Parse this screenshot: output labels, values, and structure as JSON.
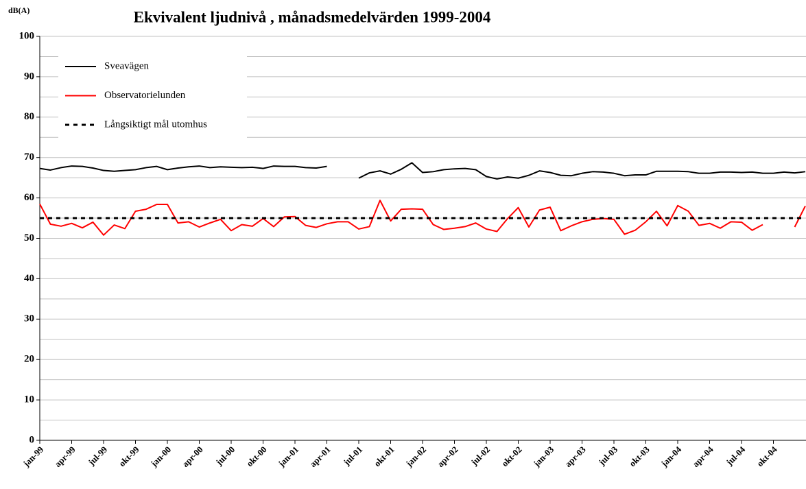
{
  "chart_data": {
    "type": "line",
    "title": "Ekvivalent ljudnivå , månadsmedelvärden 1999-2004",
    "y_label": "dB(A)",
    "categories": [
      "jan-99",
      null,
      null,
      "apr-99",
      null,
      null,
      "jul-99",
      null,
      null,
      "okt-99",
      null,
      null,
      "jan-00",
      null,
      null,
      "apr-00",
      null,
      null,
      "jul-00",
      null,
      null,
      "okt-00",
      null,
      null,
      "jan-01",
      null,
      null,
      "apr-01",
      null,
      null,
      "jul-01",
      null,
      null,
      "okt-01",
      null,
      null,
      "jan-02",
      null,
      null,
      "apr-02",
      null,
      null,
      "jul-02",
      null,
      null,
      "okt-02",
      null,
      null,
      "jan-03",
      null,
      null,
      "apr-03",
      null,
      null,
      "jul-03",
      null,
      null,
      "okt-03",
      null,
      null,
      "jan-04",
      null,
      null,
      "apr-04",
      null,
      null,
      "jul-04",
      null,
      null,
      "okt-04",
      null,
      null,
      null
    ],
    "series": [
      {
        "name": "Sveavägen",
        "color": "#000000",
        "dash": false,
        "values": [
          67.3,
          66.9,
          67.5,
          67.9,
          67.8,
          67.4,
          66.8,
          66.6,
          66.8,
          67.0,
          67.5,
          67.8,
          67.0,
          67.4,
          67.7,
          67.9,
          67.5,
          67.7,
          67.6,
          67.5,
          67.6,
          67.3,
          67.9,
          67.8,
          67.8,
          67.5,
          67.4,
          67.8,
          null,
          null,
          64.9,
          66.2,
          66.7,
          65.9,
          67.1,
          68.7,
          66.3,
          66.5,
          67.0,
          67.2,
          67.3,
          67.0,
          65.3,
          64.7,
          65.2,
          64.9,
          65.6,
          66.7,
          66.3,
          65.6,
          65.5,
          66.1,
          66.5,
          66.4,
          66.1,
          65.5,
          65.7,
          65.7,
          66.6,
          66.6,
          66.6,
          66.5,
          66.1,
          66.1,
          66.4,
          66.4,
          66.3,
          66.4,
          66.1,
          66.1,
          66.4,
          66.2,
          66.5
        ]
      },
      {
        "name": "Observatorielunden",
        "color": "#ff0000",
        "dash": false,
        "values": [
          58.5,
          53.5,
          53.0,
          53.7,
          52.6,
          54.0,
          50.8,
          53.3,
          52.4,
          56.7,
          57.2,
          58.4,
          58.4,
          53.8,
          54.1,
          52.8,
          53.8,
          54.7,
          51.9,
          53.4,
          53.0,
          54.9,
          52.9,
          55.3,
          55.4,
          53.2,
          52.7,
          53.6,
          54.1,
          54.1,
          52.3,
          52.9,
          59.4,
          54.3,
          57.2,
          57.3,
          57.2,
          53.4,
          52.2,
          52.5,
          52.9,
          53.8,
          52.3,
          51.7,
          54.9,
          57.6,
          52.8,
          57.0,
          57.7,
          51.9,
          53.1,
          54.1,
          54.7,
          54.9,
          54.7,
          51.0,
          52.0,
          54.1,
          56.7,
          53.1,
          58.1,
          56.7,
          53.2,
          53.7,
          52.5,
          54.1,
          54.0,
          52.0,
          53.4,
          null,
          null,
          52.8,
          58.0
        ]
      },
      {
        "name": "Långsiktigt mål utomhus",
        "color": "#000000",
        "dash": true,
        "values": [
          55,
          55,
          55,
          55,
          55,
          55,
          55,
          55,
          55,
          55,
          55,
          55,
          55,
          55,
          55,
          55,
          55,
          55,
          55,
          55,
          55,
          55,
          55,
          55,
          55,
          55,
          55,
          55,
          55,
          55,
          55,
          55,
          55,
          55,
          55,
          55,
          55,
          55,
          55,
          55,
          55,
          55,
          55,
          55,
          55,
          55,
          55,
          55,
          55,
          55,
          55,
          55,
          55,
          55,
          55,
          55,
          55,
          55,
          55,
          55,
          55,
          55,
          55,
          55,
          55,
          55,
          55,
          55,
          55,
          55,
          55,
          55,
          55
        ]
      }
    ],
    "ylim": [
      0,
      100
    ],
    "yticks": [
      0,
      10,
      20,
      30,
      40,
      50,
      60,
      70,
      80,
      90,
      100
    ],
    "minor_yticks": [
      5,
      15,
      25,
      35,
      45,
      55,
      65,
      75,
      85,
      95
    ],
    "grid": true,
    "legend": "upper left"
  }
}
